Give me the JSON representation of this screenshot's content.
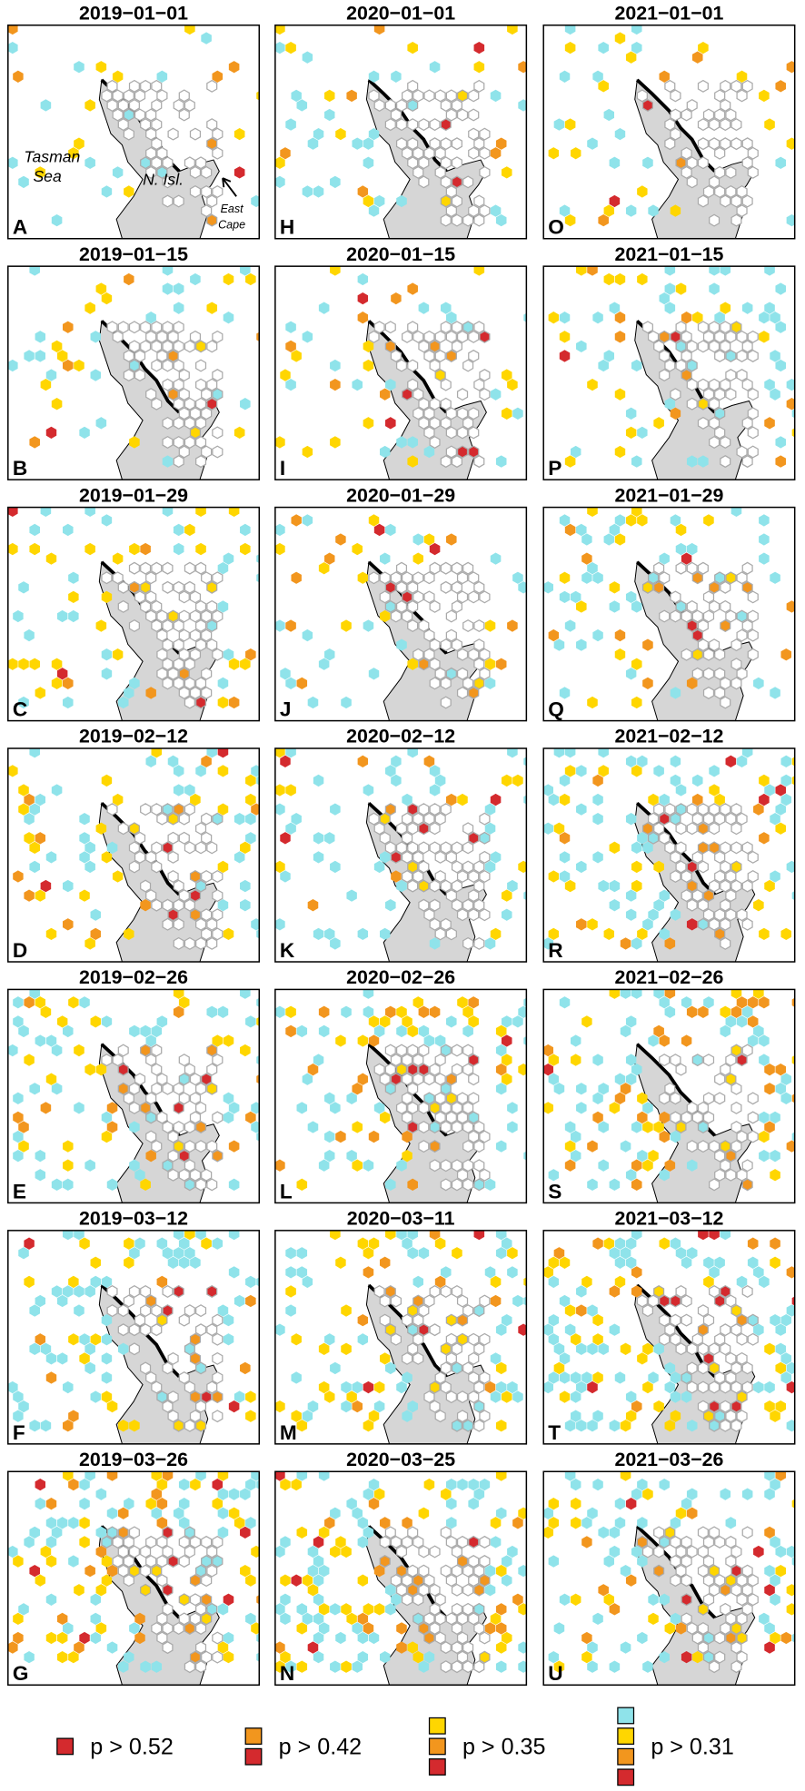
{
  "panels": [
    {
      "title": "2019−01−01",
      "letter": "A"
    },
    {
      "title": "2020−01−01",
      "letter": "H"
    },
    {
      "title": "2021−01−01",
      "letter": "O"
    },
    {
      "title": "2019−01−15",
      "letter": "B"
    },
    {
      "title": "2020−01−15",
      "letter": "I"
    },
    {
      "title": "2021−01−15",
      "letter": "P"
    },
    {
      "title": "2019−01−29",
      "letter": "C"
    },
    {
      "title": "2020−01−29",
      "letter": "J"
    },
    {
      "title": "2021−01−29",
      "letter": "Q"
    },
    {
      "title": "2019−02−12",
      "letter": "D"
    },
    {
      "title": "2020−02−12",
      "letter": "K"
    },
    {
      "title": "2021−02−12",
      "letter": "R"
    },
    {
      "title": "2019−02−26",
      "letter": "E"
    },
    {
      "title": "2020−02−26",
      "letter": "L"
    },
    {
      "title": "2021−02−26",
      "letter": "S"
    },
    {
      "title": "2019−03−12",
      "letter": "F"
    },
    {
      "title": "2020−03−11",
      "letter": "M"
    },
    {
      "title": "2021−03−12",
      "letter": "T"
    },
    {
      "title": "2019−03−26",
      "letter": "G"
    },
    {
      "title": "2020−03−25",
      "letter": "N"
    },
    {
      "title": "2021−03−26",
      "letter": "U"
    }
  ],
  "annotations": {
    "sea": [
      "Tasman",
      "Sea"
    ],
    "island": "N. Isl.",
    "cape": [
      "East",
      "Cape"
    ]
  },
  "legend": [
    {
      "label": "p > 0.52",
      "colors": [
        "#d42a2e"
      ]
    },
    {
      "label": "p > 0.42",
      "colors": [
        "#f2961e",
        "#d42a2e"
      ]
    },
    {
      "label": "p > 0.35",
      "colors": [
        "#ffd600",
        "#f2961e",
        "#d42a2e"
      ]
    },
    {
      "label": "p > 0.31",
      "colors": [
        "#8fe3ea",
        "#ffd600",
        "#f2961e",
        "#d42a2e"
      ]
    }
  ]
}
